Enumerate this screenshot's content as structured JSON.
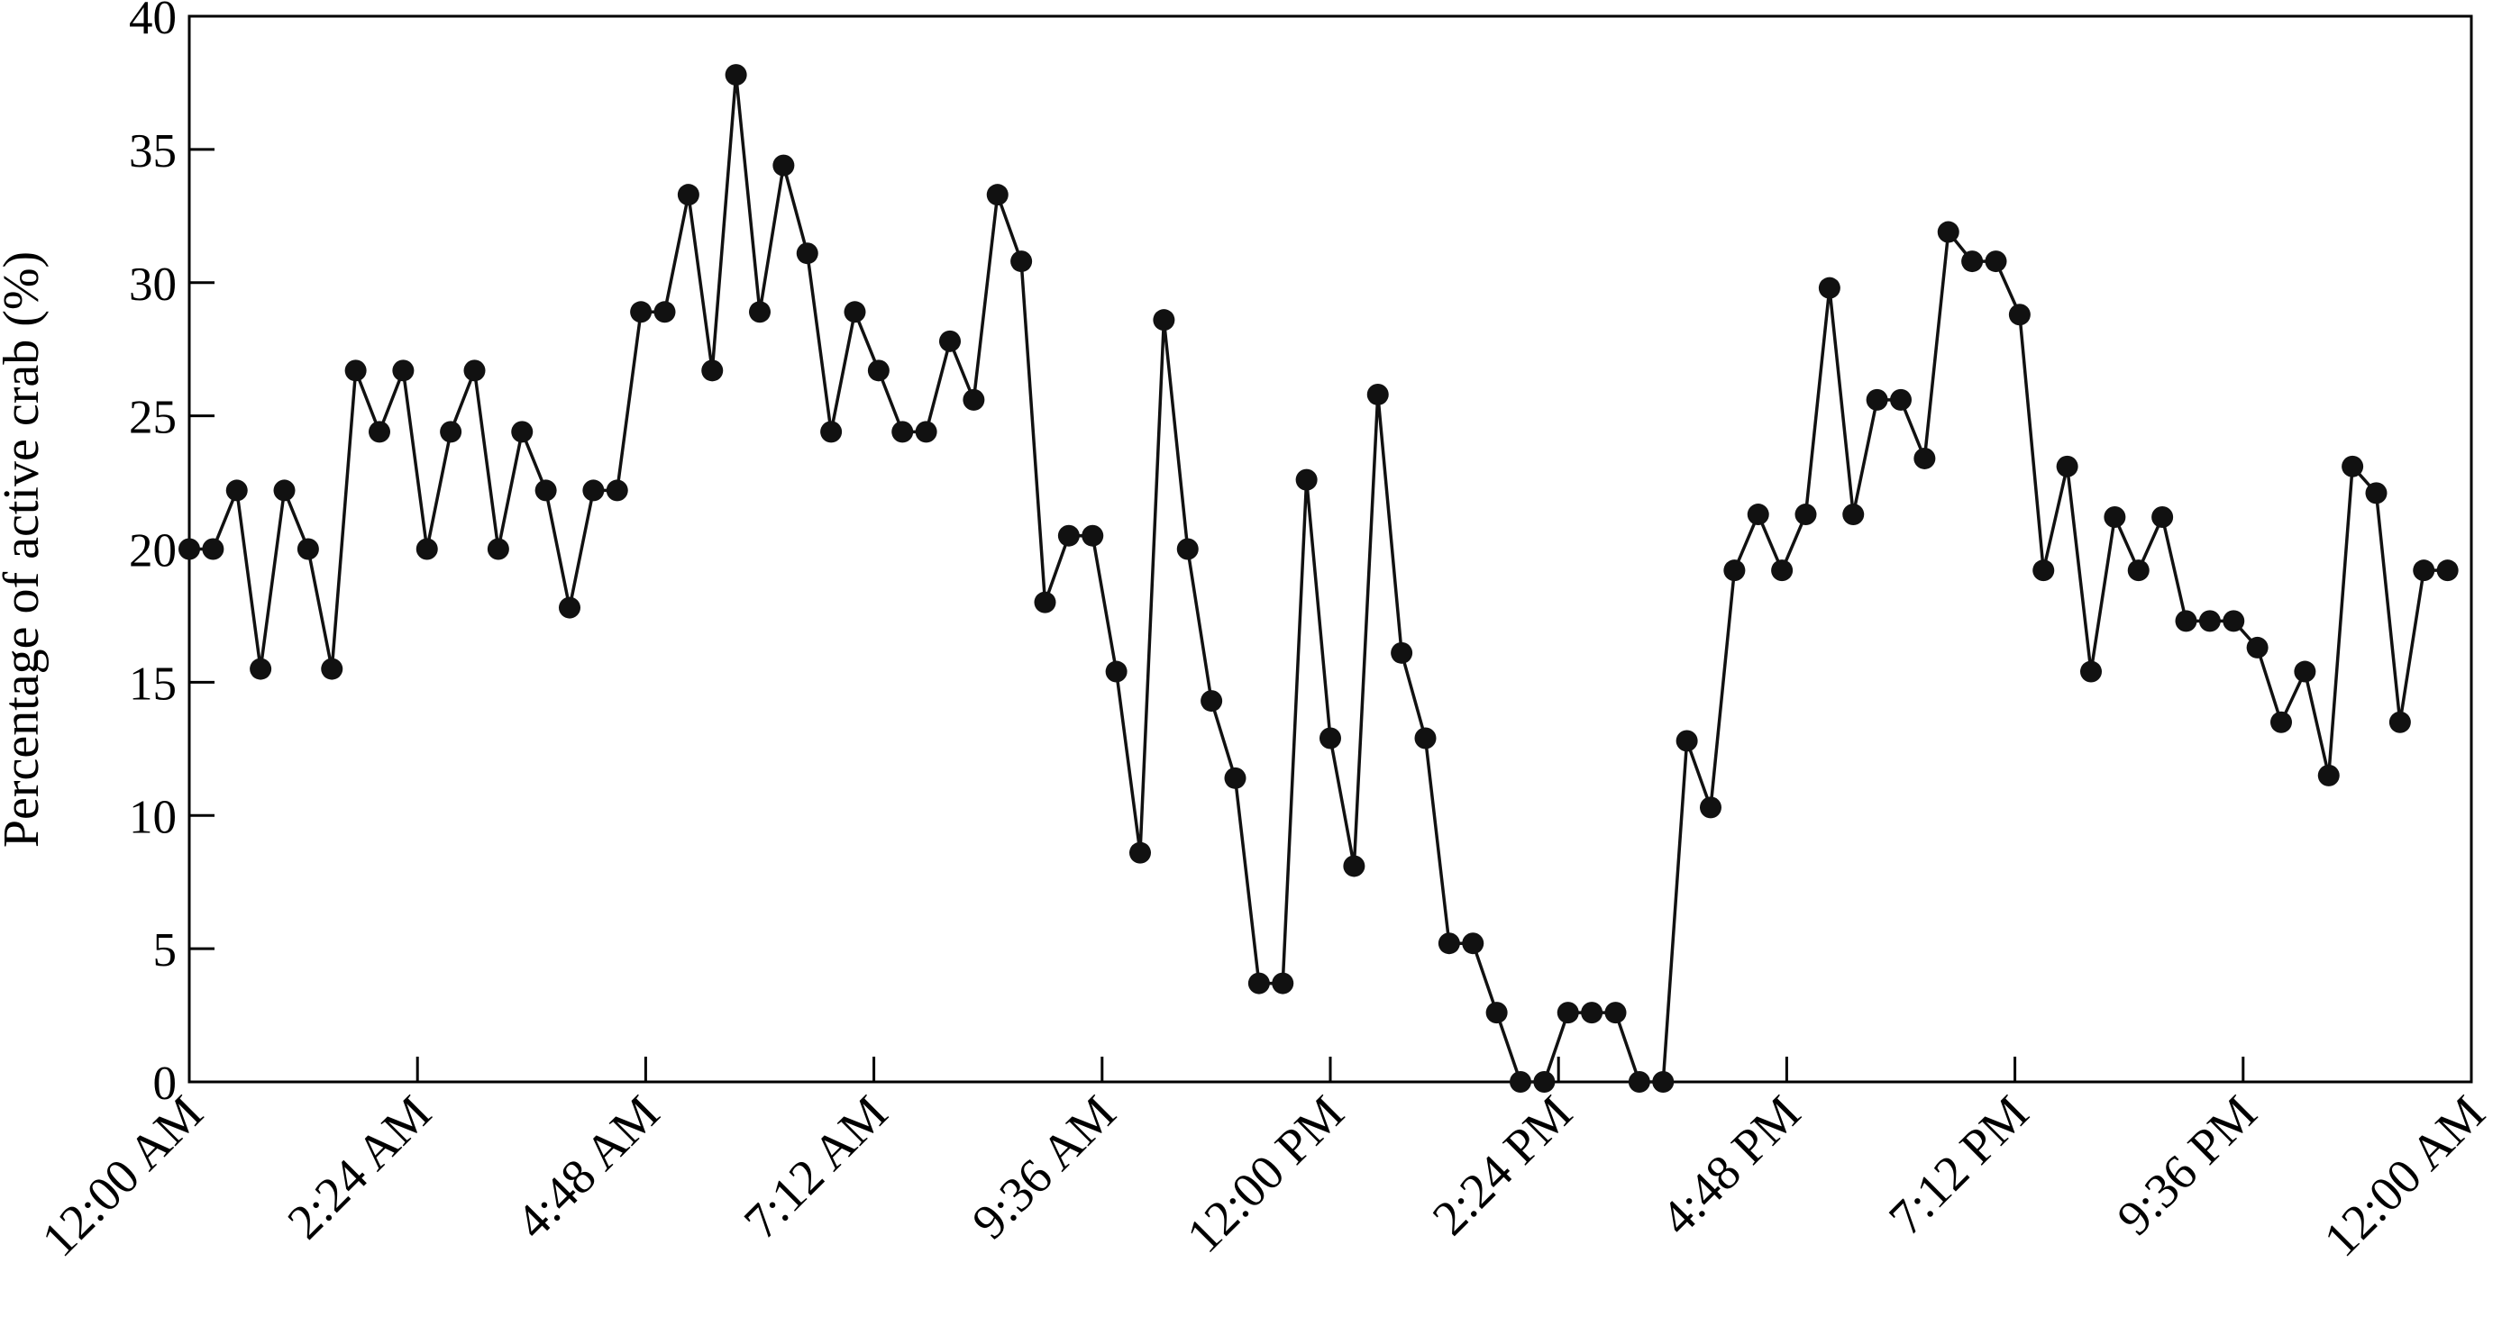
{
  "chart_data": {
    "type": "line",
    "ylabel": "Percentage of active crab (%)",
    "x": [
      0,
      15,
      30,
      45,
      60,
      75,
      90,
      105,
      120,
      135,
      150,
      165,
      180,
      195,
      210,
      225,
      240,
      255,
      270,
      285,
      300,
      315,
      330,
      345,
      360,
      375,
      390,
      405,
      420,
      435,
      450,
      465,
      480,
      495,
      510,
      525,
      540,
      555,
      570,
      585,
      600,
      615,
      630,
      645,
      660,
      675,
      690,
      705,
      720,
      735,
      750,
      765,
      780,
      795,
      810,
      825,
      840,
      855,
      870,
      885,
      900,
      915,
      930,
      945,
      960,
      975,
      990,
      1005,
      1020,
      1035,
      1050,
      1065,
      1080,
      1095,
      1110,
      1125,
      1140,
      1155,
      1170,
      1185,
      1200,
      1215,
      1230,
      1245,
      1260,
      1275,
      1290,
      1305,
      1320,
      1335,
      1350,
      1365,
      1380,
      1395,
      1410,
      1425
    ],
    "series": [
      {
        "name": "Active crab",
        "color": "#111111",
        "values": [
          20,
          20,
          22.2,
          15.5,
          22.2,
          20,
          15.5,
          26.7,
          24.4,
          26.7,
          20,
          24.4,
          26.7,
          20,
          24.4,
          22.2,
          17.8,
          22.2,
          22.2,
          28.9,
          28.9,
          33.3,
          26.7,
          37.8,
          28.9,
          34.4,
          31.1,
          24.4,
          28.9,
          26.7,
          24.4,
          24.4,
          27.8,
          25.6,
          33.3,
          30.8,
          18,
          20.5,
          20.5,
          15.4,
          8.6,
          28.6,
          20,
          14.3,
          11.4,
          3.7,
          3.7,
          22.6,
          12.9,
          8.1,
          25.8,
          16.1,
          12.9,
          5.2,
          5.2,
          2.6,
          0,
          0,
          2.6,
          2.6,
          2.6,
          0,
          0,
          12.8,
          10.3,
          19.2,
          21.3,
          19.2,
          21.3,
          29.8,
          21.3,
          25.6,
          25.6,
          23.4,
          31.9,
          30.8,
          30.8,
          28.8,
          19.2,
          23.1,
          15.4,
          21.2,
          19.2,
          21.2,
          17.3,
          17.3,
          17.3,
          16.3,
          13.5,
          15.4,
          11.5,
          23.1,
          22.1,
          13.5,
          19.2,
          19.2
        ]
      }
    ],
    "xlim": [
      0,
      1440
    ],
    "xticks": [
      {
        "value": 0,
        "label": "12:00 AM"
      },
      {
        "value": 144,
        "label": "2:24 AM"
      },
      {
        "value": 288,
        "label": "4:48 AM"
      },
      {
        "value": 432,
        "label": "7:12 AM"
      },
      {
        "value": 576,
        "label": "9:36 AM"
      },
      {
        "value": 720,
        "label": "12:00 PM"
      },
      {
        "value": 864,
        "label": "2:24 PM"
      },
      {
        "value": 1008,
        "label": "4:48 PM"
      },
      {
        "value": 1152,
        "label": "7:12 PM"
      },
      {
        "value": 1296,
        "label": "9:36 PM"
      },
      {
        "value": 1440,
        "label": "12:00 AM"
      }
    ],
    "ylim": [
      0,
      40
    ],
    "yticks": [
      0,
      5,
      10,
      15,
      20,
      25,
      30,
      35,
      40
    ],
    "grid": false,
    "marker": "circle"
  }
}
